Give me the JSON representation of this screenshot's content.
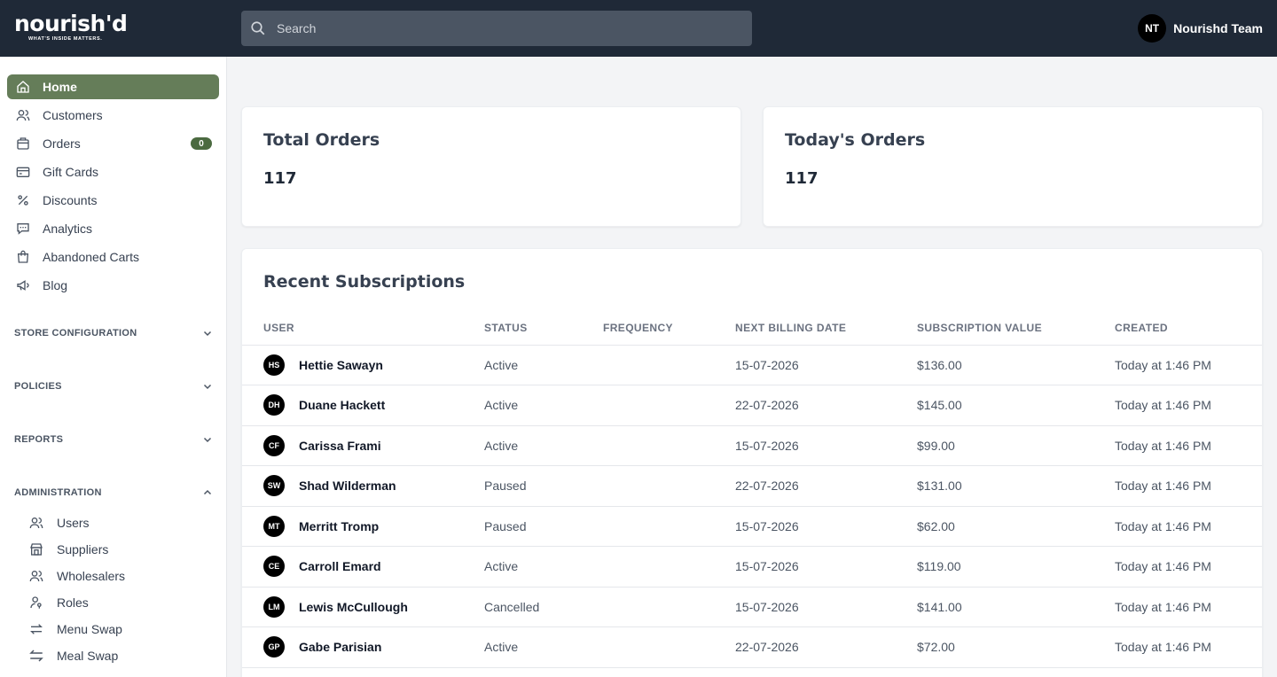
{
  "header": {
    "logo_word": "nourish'd",
    "logo_tagline": "WHAT'S INSIDE MATTERS.",
    "search_placeholder": "Search",
    "user_initials": "NT",
    "user_name": "Nourishd Team"
  },
  "sidebar": {
    "items": [
      {
        "label": "Home",
        "icon": "home-icon",
        "active": true
      },
      {
        "label": "Customers",
        "icon": "users-icon"
      },
      {
        "label": "Orders",
        "icon": "bag-icon",
        "badge": "0"
      },
      {
        "label": "Gift Cards",
        "icon": "gift-card-icon"
      },
      {
        "label": "Discounts",
        "icon": "percent-icon"
      },
      {
        "label": "Analytics",
        "icon": "chat-icon"
      },
      {
        "label": "Abandoned Carts",
        "icon": "shopping-bag-icon"
      },
      {
        "label": "Blog",
        "icon": "megaphone-icon"
      }
    ],
    "sections": [
      {
        "label": "STORE CONFIGURATION",
        "expanded": false
      },
      {
        "label": "POLICIES",
        "expanded": false
      },
      {
        "label": "REPORTS",
        "expanded": false
      },
      {
        "label": "ADMINISTRATION",
        "expanded": true
      }
    ],
    "admin_items": [
      {
        "label": "Users",
        "icon": "users-icon"
      },
      {
        "label": "Suppliers",
        "icon": "store-icon"
      },
      {
        "label": "Wholesalers",
        "icon": "users-icon"
      },
      {
        "label": "Roles",
        "icon": "key-user-icon"
      },
      {
        "label": "Menu Swap",
        "icon": "swap-icon"
      },
      {
        "label": "Meal Swap",
        "icon": "swap-alt-icon"
      }
    ]
  },
  "stats": {
    "total_orders_label": "Total Orders",
    "total_orders_value": "117",
    "todays_orders_label": "Today's Orders",
    "todays_orders_value": "117"
  },
  "subscriptions": {
    "title": "Recent Subscriptions",
    "columns": [
      "USER",
      "STATUS",
      "FREQUENCY",
      "NEXT BILLING DATE",
      "SUBSCRIPTION VALUE",
      "CREATED"
    ],
    "rows": [
      {
        "initials": "HS",
        "name": "Hettie Sawayn",
        "status": "Active",
        "frequency": "",
        "next_billing": "15-07-2026",
        "value": "$136.00",
        "created": "Today at 1:46 PM"
      },
      {
        "initials": "DH",
        "name": "Duane Hackett",
        "status": "Active",
        "frequency": "",
        "next_billing": "22-07-2026",
        "value": "$145.00",
        "created": "Today at 1:46 PM"
      },
      {
        "initials": "CF",
        "name": "Carissa Frami",
        "status": "Active",
        "frequency": "",
        "next_billing": "15-07-2026",
        "value": "$99.00",
        "created": "Today at 1:46 PM"
      },
      {
        "initials": "SW",
        "name": "Shad Wilderman",
        "status": "Paused",
        "frequency": "",
        "next_billing": "22-07-2026",
        "value": "$131.00",
        "created": "Today at 1:46 PM"
      },
      {
        "initials": "MT",
        "name": "Merritt Tromp",
        "status": "Paused",
        "frequency": "",
        "next_billing": "15-07-2026",
        "value": "$62.00",
        "created": "Today at 1:46 PM"
      },
      {
        "initials": "CE",
        "name": "Carroll Emard",
        "status": "Active",
        "frequency": "",
        "next_billing": "15-07-2026",
        "value": "$119.00",
        "created": "Today at 1:46 PM"
      },
      {
        "initials": "LM",
        "name": "Lewis McCullough",
        "status": "Cancelled",
        "frequency": "",
        "next_billing": "15-07-2026",
        "value": "$141.00",
        "created": "Today at 1:46 PM"
      },
      {
        "initials": "GP",
        "name": "Gabe Parisian",
        "status": "Active",
        "frequency": "",
        "next_billing": "22-07-2026",
        "value": "$72.00",
        "created": "Today at 1:46 PM"
      }
    ]
  },
  "colors": {
    "topbar": "#1f2937",
    "accent": "#657d59",
    "badge": "#4b6a40"
  }
}
